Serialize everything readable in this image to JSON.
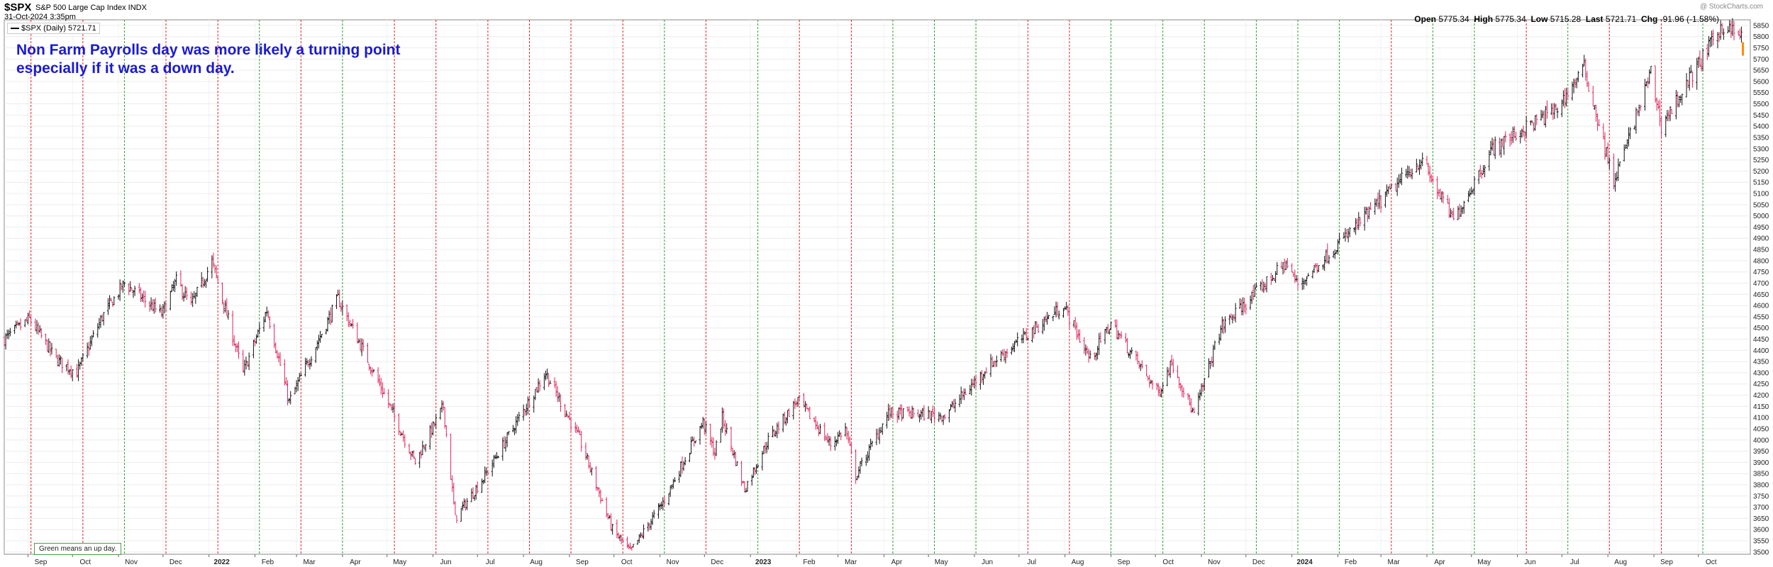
{
  "header": {
    "ticker": "$SPX",
    "description": "S&P 500 Large Cap Index INDX",
    "datetime": "31-Oct-2024 3:35pm",
    "legend": "$SPX (Daily) 5721.71",
    "logo": "@ StockCharts.com",
    "open_label": "Open",
    "open": "5775.34",
    "high_label": "High",
    "high": "5775.34",
    "low_label": "Low",
    "low": "5715.28",
    "last_label": "Last",
    "last": "5721.71",
    "chg_label": "Chg",
    "chg": "-91.96 (-1.58%)"
  },
  "annotation": {
    "line1": "Non Farm Payrolls day was more likely a turning point",
    "line2": "especially if it was a down day."
  },
  "note": "Green means an up day.",
  "colors": {
    "up_day": "#2ea02e",
    "down_day": "#e02424",
    "bar_up": "#111111",
    "bar_down": "#e0245a",
    "last_bar": "#ff8c00",
    "annotation": "#1a1ad6"
  },
  "chart_data": {
    "type": "bar",
    "subtype": "ohlc-daily",
    "series_name": "$SPX (Daily)",
    "x_ticks": [
      "Sep",
      "Oct",
      "Nov",
      "Dec",
      "2022",
      "Feb",
      "Mar",
      "Apr",
      "May",
      "Jun",
      "Jul",
      "Aug",
      "Sep",
      "Oct",
      "Nov",
      "Dec",
      "2023",
      "Feb",
      "Mar",
      "Apr",
      "May",
      "Jun",
      "Jul",
      "Aug",
      "Sep",
      "Oct",
      "Nov",
      "Dec",
      "2024",
      "Feb",
      "Mar",
      "Apr",
      "May",
      "Jun",
      "Jul",
      "Aug",
      "Sep",
      "Oct"
    ],
    "x_range": [
      "2021-08-16",
      "2024-11-05"
    ],
    "y_ticks": [
      3500,
      3550,
      3600,
      3650,
      3700,
      3750,
      3800,
      3850,
      3900,
      3950,
      4000,
      4050,
      4100,
      4150,
      4200,
      4250,
      4300,
      4350,
      4400,
      4450,
      4500,
      4550,
      4600,
      4650,
      4700,
      4750,
      4800,
      4850,
      4900,
      4950,
      5000,
      5050,
      5100,
      5150,
      5200,
      5250,
      5300,
      5350,
      5400,
      5450,
      5500,
      5550,
      5600,
      5650,
      5700,
      5750,
      5800,
      5850
    ],
    "ylim": [
      3490,
      5875
    ],
    "y_axis_side": "right",
    "price_path": [
      [
        "2021-08-16",
        4450
      ],
      [
        "2021-09-02",
        4540
      ],
      [
        "2021-09-20",
        4360
      ],
      [
        "2021-10-04",
        4300
      ],
      [
        "2021-10-21",
        4550
      ],
      [
        "2021-11-05",
        4700
      ],
      [
        "2021-11-30",
        4560
      ],
      [
        "2021-12-10",
        4710
      ],
      [
        "2021-12-20",
        4600
      ],
      [
        "2022-01-03",
        4795
      ],
      [
        "2022-01-24",
        4300
      ],
      [
        "2022-02-09",
        4580
      ],
      [
        "2022-02-24",
        4170
      ],
      [
        "2022-03-29",
        4630
      ],
      [
        "2022-04-28",
        4220
      ],
      [
        "2022-05-20",
        3900
      ],
      [
        "2022-06-08",
        4150
      ],
      [
        "2022-06-16",
        3650
      ],
      [
        "2022-07-05",
        3830
      ],
      [
        "2022-08-16",
        4300
      ],
      [
        "2022-09-08",
        4000
      ],
      [
        "2022-09-30",
        3600
      ],
      [
        "2022-10-12",
        3500
      ],
      [
        "2022-11-03",
        3720
      ],
      [
        "2022-11-30",
        4080
      ],
      [
        "2022-12-08",
        3940
      ],
      [
        "2022-12-13",
        4100
      ],
      [
        "2022-12-28",
        3780
      ],
      [
        "2023-01-13",
        4000
      ],
      [
        "2023-02-02",
        4180
      ],
      [
        "2023-02-24",
        3980
      ],
      [
        "2023-03-06",
        4050
      ],
      [
        "2023-03-13",
        3840
      ],
      [
        "2023-04-04",
        4120
      ],
      [
        "2023-05-12",
        4110
      ],
      [
        "2023-06-12",
        4340
      ],
      [
        "2023-07-31",
        4600
      ],
      [
        "2023-08-18",
        4360
      ],
      [
        "2023-09-01",
        4520
      ],
      [
        "2023-10-03",
        4210
      ],
      [
        "2023-10-12",
        4350
      ],
      [
        "2023-10-27",
        4110
      ],
      [
        "2023-11-14",
        4500
      ],
      [
        "2023-12-28",
        4790
      ],
      [
        "2024-01-05",
        4690
      ],
      [
        "2024-03-28",
        5250
      ],
      [
        "2024-04-19",
        4980
      ],
      [
        "2024-05-15",
        5300
      ],
      [
        "2024-06-28",
        5480
      ],
      [
        "2024-07-16",
        5660
      ],
      [
        "2024-08-05",
        5150
      ],
      [
        "2024-08-30",
        5640
      ],
      [
        "2024-09-06",
        5400
      ],
      [
        "2024-10-17",
        5850
      ],
      [
        "2024-10-30",
        5800
      ],
      [
        "2024-10-31",
        5721.71
      ]
    ],
    "last_bar": {
      "date": "2024-10-31",
      "open": 5775.34,
      "high": 5775.34,
      "low": 5715.28,
      "close": 5721.71
    },
    "nfp_days": [
      {
        "date": "2021-09-03",
        "type": "down"
      },
      {
        "date": "2021-10-08",
        "type": "down"
      },
      {
        "date": "2021-11-05",
        "type": "up"
      },
      {
        "date": "2021-12-03",
        "type": "down"
      },
      {
        "date": "2022-01-07",
        "type": "down"
      },
      {
        "date": "2022-02-04",
        "type": "up"
      },
      {
        "date": "2022-03-04",
        "type": "down"
      },
      {
        "date": "2022-04-01",
        "type": "up"
      },
      {
        "date": "2022-05-06",
        "type": "down"
      },
      {
        "date": "2022-06-03",
        "type": "down"
      },
      {
        "date": "2022-07-08",
        "type": "down"
      },
      {
        "date": "2022-08-05",
        "type": "down"
      },
      {
        "date": "2022-09-02",
        "type": "down"
      },
      {
        "date": "2022-10-07",
        "type": "down"
      },
      {
        "date": "2022-11-04",
        "type": "up"
      },
      {
        "date": "2022-12-02",
        "type": "down"
      },
      {
        "date": "2023-01-06",
        "type": "up"
      },
      {
        "date": "2023-02-03",
        "type": "down"
      },
      {
        "date": "2023-03-10",
        "type": "down"
      },
      {
        "date": "2023-04-07",
        "type": "up"
      },
      {
        "date": "2023-05-05",
        "type": "up"
      },
      {
        "date": "2023-06-02",
        "type": "up"
      },
      {
        "date": "2023-07-07",
        "type": "down"
      },
      {
        "date": "2023-08-04",
        "type": "down"
      },
      {
        "date": "2023-09-01",
        "type": "up"
      },
      {
        "date": "2023-10-06",
        "type": "up"
      },
      {
        "date": "2023-11-03",
        "type": "up"
      },
      {
        "date": "2023-12-08",
        "type": "up"
      },
      {
        "date": "2024-01-05",
        "type": "up"
      },
      {
        "date": "2024-02-02",
        "type": "up"
      },
      {
        "date": "2024-03-08",
        "type": "down"
      },
      {
        "date": "2024-04-05",
        "type": "up"
      },
      {
        "date": "2024-05-03",
        "type": "up"
      },
      {
        "date": "2024-06-07",
        "type": "down"
      },
      {
        "date": "2024-07-05",
        "type": "up"
      },
      {
        "date": "2024-08-02",
        "type": "down"
      },
      {
        "date": "2024-09-06",
        "type": "down"
      },
      {
        "date": "2024-10-04",
        "type": "up"
      }
    ],
    "grid": true,
    "legend_position": "top-left"
  }
}
